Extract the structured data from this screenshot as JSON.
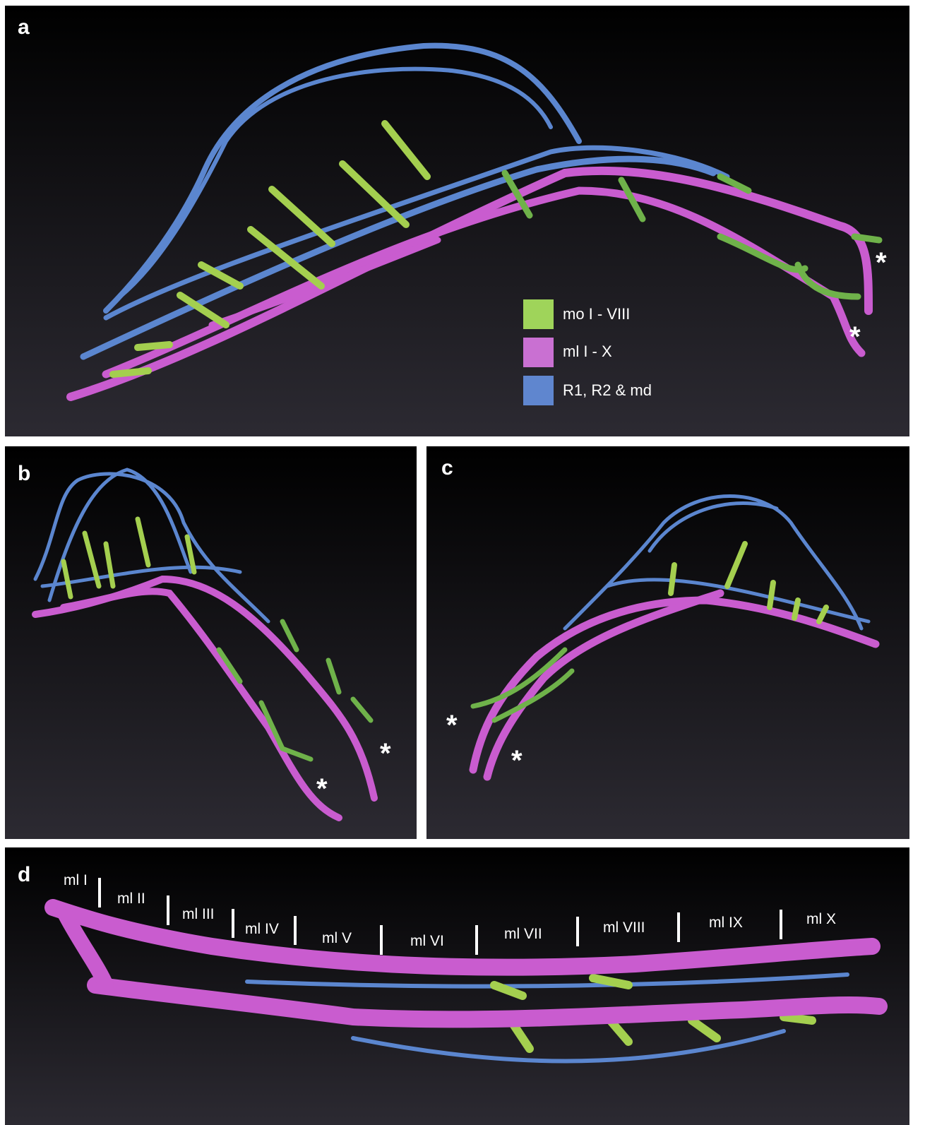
{
  "panels": [
    {
      "label": "a",
      "asterisks": [
        "*",
        "*"
      ],
      "legend": [
        "mo I - VIII",
        "ml I - X",
        "R1, R2 & md"
      ]
    },
    {
      "label": "b",
      "asterisks": [
        "*",
        "*"
      ]
    },
    {
      "label": "c",
      "asterisks": [
        "*",
        "*"
      ]
    },
    {
      "label": "d",
      "segment_labels": [
        "ml I",
        "ml II",
        "ml III",
        "ml IV",
        "ml V",
        "ml VI",
        "ml VII",
        "ml VIII",
        "ml IX",
        "ml X"
      ]
    }
  ]
}
